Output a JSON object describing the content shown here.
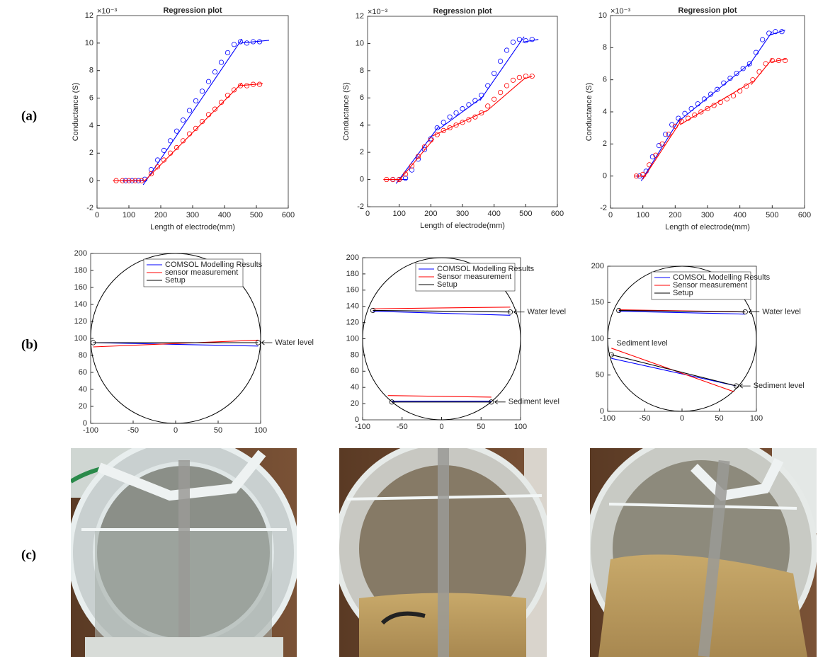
{
  "row_labels": [
    "(a)",
    "(b)",
    "(c)"
  ],
  "chart_data": [
    {
      "type": "line",
      "title": "Regression plot",
      "xlabel": "Length of electrode(mm)",
      "ylabel": "Conductance (S)",
      "y_multiplier": "×10⁻³",
      "xlim": [
        0,
        600
      ],
      "xticks": [
        0,
        100,
        200,
        300,
        400,
        500,
        600
      ],
      "ylim": [
        -2,
        12
      ],
      "yticks": [
        -2,
        0,
        2,
        4,
        6,
        8,
        10,
        12
      ],
      "series": [
        {
          "color": "#0000ff",
          "line": false,
          "marker": "o",
          "x": [
            90,
            110,
            130,
            150,
            170,
            190,
            210,
            230,
            250,
            270,
            290,
            310,
            330,
            350,
            370,
            390,
            410,
            430,
            450,
            470,
            490,
            510
          ],
          "values": [
            0,
            0,
            0,
            0.1,
            0.8,
            1.5,
            2.2,
            2.9,
            3.6,
            4.4,
            5.1,
            5.8,
            6.5,
            7.2,
            7.9,
            8.6,
            9.3,
            9.9,
            10.1,
            10.0,
            10.1,
            10.1
          ]
        },
        {
          "color": "#0000ff",
          "line": true,
          "marker": "none",
          "x": [
            80,
            150,
            150,
            145,
            455,
            455,
            450,
            540
          ],
          "values": [
            0,
            0,
            null,
            -0.3,
            10.3,
            null,
            10,
            10.2
          ]
        },
        {
          "color": "#ff0000",
          "line": false,
          "marker": "o",
          "x": [
            60,
            80,
            100,
            120,
            140,
            170,
            190,
            210,
            230,
            250,
            270,
            290,
            310,
            330,
            350,
            370,
            390,
            410,
            430,
            450,
            470,
            490,
            510
          ],
          "values": [
            0,
            0,
            0,
            0,
            0,
            0.5,
            1.0,
            1.5,
            2.0,
            2.4,
            2.9,
            3.4,
            3.8,
            4.3,
            4.8,
            5.2,
            5.7,
            6.2,
            6.6,
            6.9,
            6.9,
            7.0,
            7.0
          ]
        },
        {
          "color": "#ff0000",
          "line": true,
          "marker": "none",
          "x": [
            50,
            150,
            150,
            150,
            455,
            455,
            445,
            520
          ],
          "values": [
            0,
            0,
            null,
            0,
            7.1,
            null,
            6.9,
            7.05
          ]
        }
      ]
    },
    {
      "type": "line",
      "title": "Regression plot",
      "xlabel": "Length of electrode(mm)",
      "ylabel": "Conductance (S)",
      "y_multiplier": "×10⁻³",
      "xlim": [
        0,
        600
      ],
      "xticks": [
        0,
        100,
        200,
        300,
        400,
        500,
        600
      ],
      "ylim": [
        -2,
        12
      ],
      "yticks": [
        -2,
        0,
        2,
        4,
        6,
        8,
        10,
        12
      ],
      "series": [
        {
          "color": "#0000ff",
          "line": false,
          "marker": "o",
          "x": [
            80,
            100,
            120,
            140,
            160,
            180,
            200,
            220,
            240,
            260,
            280,
            300,
            320,
            340,
            360,
            380,
            400,
            420,
            440,
            460,
            480,
            500,
            520
          ],
          "values": [
            0,
            0,
            0.1,
            0.7,
            1.5,
            2.2,
            3.0,
            3.8,
            4.2,
            4.6,
            4.9,
            5.2,
            5.5,
            5.8,
            6.2,
            6.9,
            7.8,
            8.7,
            9.5,
            10.1,
            10.3,
            10.2,
            10.3
          ]
        },
        {
          "color": "#0000ff",
          "line": true,
          "marker": "none",
          "x": [
            60,
            125,
            125,
            90,
            225,
            225,
            225,
            360,
            360,
            355,
            495,
            495,
            490,
            540
          ],
          "values": [
            0,
            0,
            null,
            -0.3,
            3.9,
            null,
            3.7,
            6.0,
            null,
            5.8,
            10.5,
            null,
            10.1,
            10.3
          ]
        },
        {
          "color": "#ff0000",
          "line": false,
          "marker": "o",
          "x": [
            60,
            80,
            100,
            120,
            140,
            160,
            180,
            200,
            220,
            240,
            260,
            280,
            300,
            320,
            340,
            360,
            380,
            400,
            420,
            440,
            460,
            480,
            500,
            520
          ],
          "values": [
            0,
            0,
            0,
            0.4,
            1.0,
            1.7,
            2.4,
            2.9,
            3.3,
            3.6,
            3.8,
            4.0,
            4.2,
            4.4,
            4.6,
            4.9,
            5.4,
            5.9,
            6.4,
            6.9,
            7.3,
            7.5,
            7.6,
            7.6
          ]
        },
        {
          "color": "#ff0000",
          "line": true,
          "marker": "none",
          "x": [
            50,
            110,
            110,
            95,
            210,
            210,
            205,
            380,
            380,
            375,
            500,
            500,
            495,
            520
          ],
          "values": [
            0,
            0,
            null,
            -0.2,
            3.0,
            null,
            3.2,
            5.1,
            null,
            5.0,
            7.5,
            null,
            7.4,
            7.6
          ]
        }
      ]
    },
    {
      "type": "line",
      "title": "Regression plot",
      "xlabel": "Length of electrode(mm)",
      "ylabel": "Conductance (S)",
      "y_multiplier": "×10⁻³",
      "xlim": [
        0,
        600
      ],
      "xticks": [
        0,
        100,
        200,
        300,
        400,
        500,
        600
      ],
      "ylim": [
        -2,
        10
      ],
      "yticks": [
        -2,
        0,
        2,
        4,
        6,
        8,
        10
      ],
      "series": [
        {
          "color": "#0000ff",
          "line": false,
          "marker": "o",
          "x": [
            90,
            110,
            130,
            150,
            170,
            190,
            210,
            230,
            250,
            270,
            290,
            310,
            330,
            350,
            370,
            390,
            410,
            430,
            450,
            470,
            490,
            510,
            530
          ],
          "values": [
            0,
            0.3,
            1.2,
            1.9,
            2.6,
            3.2,
            3.6,
            3.9,
            4.2,
            4.5,
            4.8,
            5.1,
            5.4,
            5.8,
            6.1,
            6.4,
            6.7,
            7.0,
            7.7,
            8.5,
            8.9,
            9.0,
            9.0
          ]
        },
        {
          "color": "#0000ff",
          "line": true,
          "marker": "none",
          "x": [
            80,
            110,
            110,
            95,
            215,
            215,
            210,
            430,
            430,
            425,
            500,
            500,
            495,
            540
          ],
          "values": [
            0,
            0,
            null,
            -0.3,
            3.6,
            null,
            3.4,
            7.0,
            null,
            6.8,
            9.0,
            null,
            8.8,
            9.1
          ]
        },
        {
          "color": "#ff0000",
          "line": false,
          "marker": "o",
          "x": [
            80,
            100,
            120,
            140,
            160,
            180,
            200,
            220,
            240,
            260,
            280,
            300,
            320,
            340,
            360,
            380,
            400,
            420,
            440,
            460,
            480,
            500,
            520,
            540
          ],
          "values": [
            0,
            0.1,
            0.7,
            1.3,
            2.0,
            2.6,
            3.1,
            3.4,
            3.6,
            3.8,
            4.0,
            4.2,
            4.4,
            4.6,
            4.8,
            5.0,
            5.3,
            5.6,
            6.0,
            6.5,
            7.0,
            7.2,
            7.2,
            7.2
          ]
        },
        {
          "color": "#ff0000",
          "line": true,
          "marker": "none",
          "x": [
            75,
            110,
            110,
            100,
            220,
            220,
            215,
            440,
            440,
            435,
            500,
            500,
            495,
            545
          ],
          "values": [
            0,
            0,
            null,
            -0.2,
            3.5,
            null,
            3.2,
            5.9,
            null,
            5.7,
            7.3,
            null,
            7.1,
            7.3
          ]
        }
      ]
    },
    {
      "type": "line",
      "legend": "upper center",
      "circle": {
        "cx": 0,
        "cy": 100,
        "r": 100
      },
      "xlim": [
        -100,
        100
      ],
      "xticks": [
        -100,
        -50,
        0,
        50,
        100
      ],
      "ylim": [
        0,
        200
      ],
      "yticks": [
        0,
        20,
        40,
        60,
        80,
        100,
        120,
        140,
        160,
        180,
        200
      ],
      "series": [
        {
          "name": "COMSOL Modelling Results",
          "color": "#0000ff",
          "line": true,
          "marker": "none",
          "x": [
            -97,
            97
          ],
          "values": [
            95,
            91
          ]
        },
        {
          "name": "sensor measurement",
          "color": "#ff0000",
          "line": true,
          "marker": "none",
          "x": [
            -97,
            97
          ],
          "values": [
            90,
            98
          ]
        },
        {
          "name": "Setup",
          "color": "#000000",
          "line": true,
          "marker": "o",
          "x": [
            -97,
            97
          ],
          "values": [
            95,
            95
          ]
        }
      ],
      "annotations": [
        {
          "text": "Water level",
          "x": 97,
          "y": 95,
          "arrow": true
        }
      ]
    },
    {
      "type": "line",
      "legend": "upper right",
      "circle": {
        "cx": 0,
        "cy": 100,
        "r": 100
      },
      "xlim": [
        -100,
        100
      ],
      "xticks": [
        -100,
        -50,
        0,
        50,
        100
      ],
      "ylim": [
        0,
        200
      ],
      "yticks": [
        0,
        20,
        40,
        60,
        80,
        100,
        120,
        140,
        160,
        180,
        200
      ],
      "series": [
        {
          "name": "COMSOL Modelling Results",
          "color": "#0000ff",
          "line": true,
          "marker": "none",
          "x": [
            -87,
            87,
            87,
            -63,
            63
          ],
          "values": [
            134,
            129,
            null,
            23,
            23
          ]
        },
        {
          "name": "Sensor measurement",
          "color": "#ff0000",
          "line": true,
          "marker": "none",
          "x": [
            -87,
            87,
            87,
            -68,
            63
          ],
          "values": [
            137,
            139,
            null,
            30,
            28
          ]
        },
        {
          "name": "Setup",
          "color": "#000000",
          "line": true,
          "marker": "o",
          "x": [
            -87,
            87,
            87,
            -63,
            63
          ],
          "values": [
            135,
            133,
            null,
            22,
            22
          ]
        }
      ],
      "annotations": [
        {
          "text": "Water level",
          "x": 87,
          "y": 133,
          "arrow": true
        },
        {
          "text": "Sediment level",
          "x": 63,
          "y": 22,
          "arrow": true
        }
      ]
    },
    {
      "type": "line",
      "legend": "upper right",
      "circle": {
        "cx": 0,
        "cy": 100,
        "r": 100
      },
      "xlim": [
        -100,
        100
      ],
      "xticks": [
        -100,
        -50,
        0,
        50,
        100
      ],
      "ylim": [
        0,
        200
      ],
      "yticks": [
        0,
        50,
        100,
        150,
        200
      ],
      "series": [
        {
          "name": "COMSOL Modelling Results",
          "color": "#0000ff",
          "line": true,
          "marker": "none",
          "x": [
            -85,
            85,
            85,
            -95,
            73
          ],
          "values": [
            138,
            134,
            null,
            73,
            35
          ]
        },
        {
          "name": "Sensor measurement",
          "color": "#ff0000",
          "line": true,
          "marker": "none",
          "x": [
            -85,
            85,
            85,
            -95,
            70
          ],
          "values": [
            140,
            137,
            null,
            87,
            27
          ]
        },
        {
          "name": "Setup",
          "color": "#000000",
          "line": true,
          "marker": "o",
          "x": [
            -85,
            85,
            85,
            -95,
            73
          ],
          "values": [
            139,
            137,
            null,
            78,
            35
          ]
        }
      ],
      "annotations": [
        {
          "text": "Water level",
          "x": 85,
          "y": 137,
          "arrow": true
        },
        {
          "text": "Sediment level",
          "x": -90,
          "y": 86,
          "arrow": false
        },
        {
          "text": "Sediment level",
          "x": 73,
          "y": 35,
          "arrow": true
        }
      ]
    }
  ]
}
